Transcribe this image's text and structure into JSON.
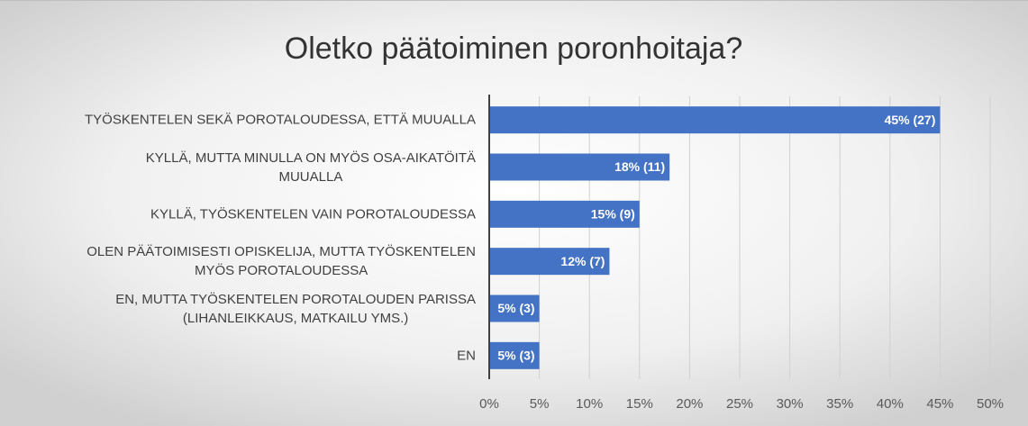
{
  "chart_data": {
    "type": "bar",
    "orientation": "horizontal",
    "title": "Oletko päätoiminen poronhoitaja?",
    "categories": [
      "TYÖSKENTELEN SEKÄ POROTALOUDESSA, ETTÄ MUUALLA",
      "KYLLÄ, MUTTA MINULLA ON MYÖS OSA-AIKATÖITÄ\nMUUALLA",
      "KYLLÄ, TYÖSKENTELEN VAIN POROTALOUDESSA",
      "OLEN PÄÄTOIMISESTI OPISKELIJA, MUTTA TYÖSKENTELEN\nMYÖS POROTALOUDESSA",
      "EN, MUTTA TYÖSKENTELEN POROTALOUDEN PARISSA\n(LIHANLEIKKAUS, MATKAILU YMS.)",
      "EN"
    ],
    "values": [
      45,
      18,
      15,
      12,
      5,
      5
    ],
    "value_labels": [
      "45% (27)",
      "18% (11)",
      "15% (9)",
      "12% (7)",
      "5% (3)",
      "5% (3)"
    ],
    "color": "#4472c4",
    "xlim": [
      0,
      50
    ],
    "xticks": [
      {
        "value": 0,
        "label": "0%"
      },
      {
        "value": 5,
        "label": "5%"
      },
      {
        "value": 10,
        "label": "10%"
      },
      {
        "value": 15,
        "label": "15%"
      },
      {
        "value": 20,
        "label": "20%"
      },
      {
        "value": 25,
        "label": "25%"
      },
      {
        "value": 30,
        "label": "30%"
      },
      {
        "value": 35,
        "label": "35%"
      },
      {
        "value": 40,
        "label": "40%"
      },
      {
        "value": 45,
        "label": "45%"
      },
      {
        "value": 50,
        "label": "50%"
      }
    ],
    "grid": true
  }
}
